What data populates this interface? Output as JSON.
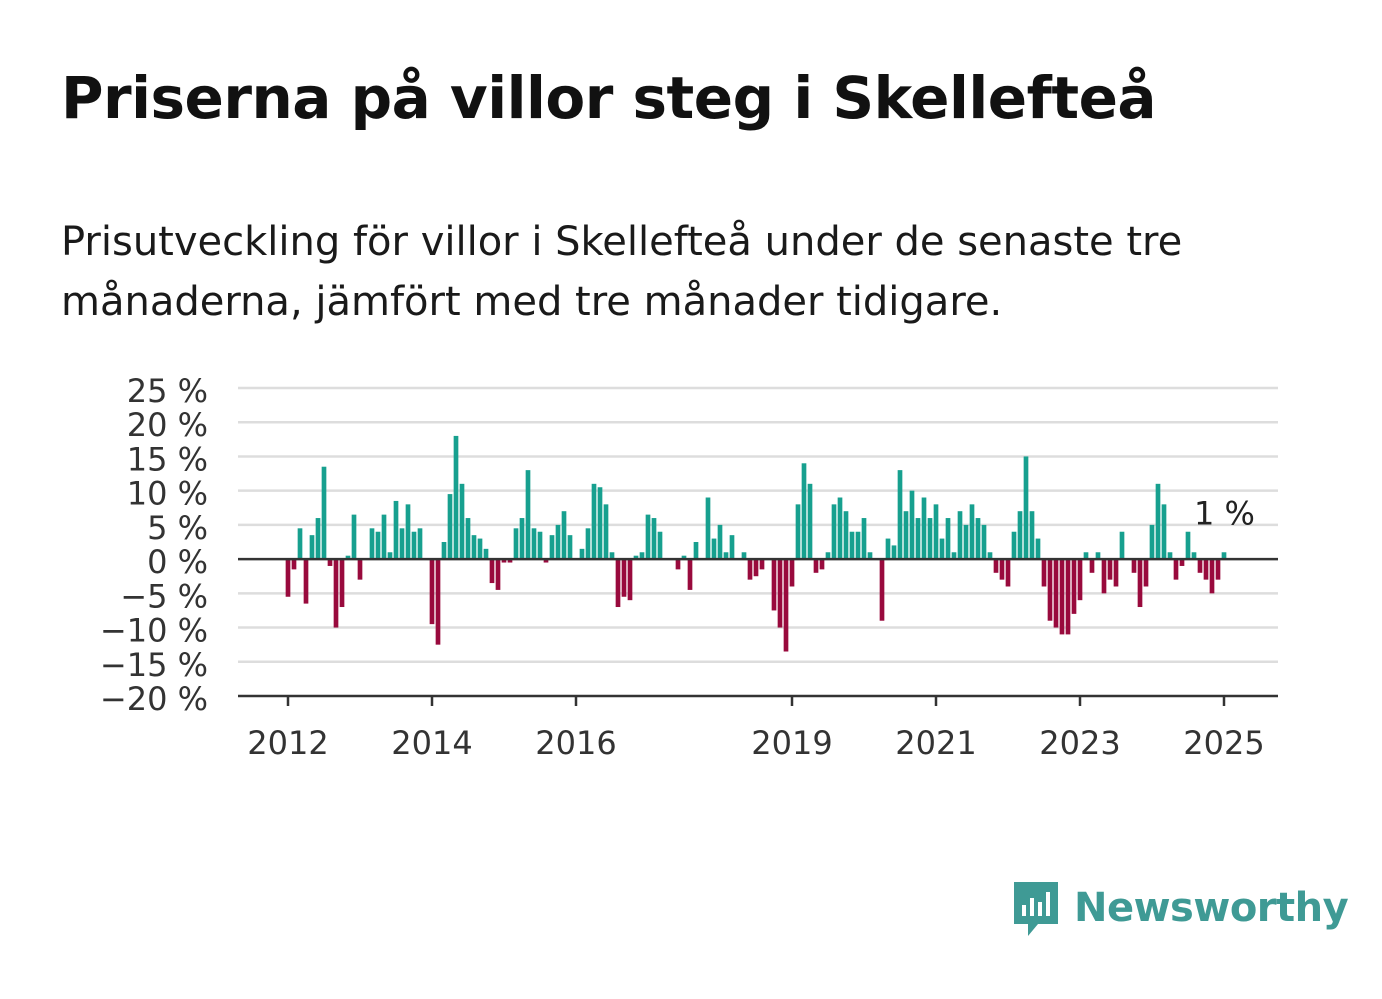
{
  "title": "Priserna på villor steg i Skellefteå",
  "subtitle": "Prisutveckling för villor i Skellefteå under de senaste tre månaderna, jämfört med tre månader tidigare.",
  "brand": {
    "name": "Newsworthy",
    "icon": "newsworthy-logo-icon"
  },
  "colors": {
    "positive": "#17a08f",
    "negative": "#990a3d",
    "grid": "#dddddd",
    "axis": "#333333",
    "text": "#333333",
    "brand": "#3f9a95"
  },
  "chart_data": {
    "type": "bar",
    "ylim": [
      -20,
      25
    ],
    "yticks": [
      -20,
      -15,
      -10,
      -5,
      0,
      5,
      10,
      15,
      20,
      25
    ],
    "ytick_labels": [
      "−20 %",
      "−15 %",
      "−10 %",
      "−5 %",
      "0 %",
      "5 %",
      "10 %",
      "15 %",
      "20 %",
      "25 %"
    ],
    "x_start": "2012-01",
    "xticks": [
      "2012",
      "2014",
      "2016",
      "2019",
      "2021",
      "2023",
      "2025"
    ],
    "annotation": "1 %",
    "grid": true,
    "series": [
      {
        "values": [
          -5.5,
          -1.5,
          4.5,
          -6.5,
          3.5,
          6,
          13.5,
          -1,
          -10,
          -7,
          0.5,
          6.5,
          -3,
          0,
          4.5,
          4,
          6.5,
          1,
          8.5,
          4.5,
          8,
          4,
          4.5,
          0,
          -9.5,
          -12.5,
          2.5,
          9.5,
          18,
          11,
          6,
          3.5,
          3,
          1.5,
          -3.5,
          -4.5,
          -0.5,
          -0.5,
          4.5,
          6,
          13,
          4.5,
          4,
          -0.5,
          3.5,
          5,
          7,
          3.5,
          0,
          1.5,
          4.5,
          11,
          10.5,
          8,
          1,
          -7,
          -5.5,
          -6,
          0.5,
          1,
          6.5,
          6,
          4,
          0,
          0,
          -1.5,
          0.5,
          -4.5,
          2.5,
          0,
          9,
          3,
          5,
          1,
          3.5,
          0,
          1,
          -3,
          -2.5,
          -1.5,
          0,
          -7.5,
          -10,
          -13.5,
          -4,
          8,
          14,
          11,
          -2,
          -1.5,
          1,
          8,
          9,
          7,
          4,
          4,
          6,
          1,
          0,
          -9,
          3,
          2,
          13,
          7,
          10,
          6,
          9,
          6,
          8,
          3,
          6,
          1,
          7,
          5,
          8,
          6,
          5,
          1,
          -2,
          -3,
          -4,
          4,
          7,
          15,
          7,
          3,
          -4,
          -9,
          -10,
          -11,
          -11,
          -8,
          -6,
          1,
          -2,
          1,
          -5,
          -3,
          -4,
          4,
          0,
          -2,
          -7,
          -4,
          5,
          11,
          8,
          1,
          -3,
          -1,
          4,
          1,
          -2,
          -3,
          -5,
          -3,
          1
        ]
      }
    ]
  }
}
